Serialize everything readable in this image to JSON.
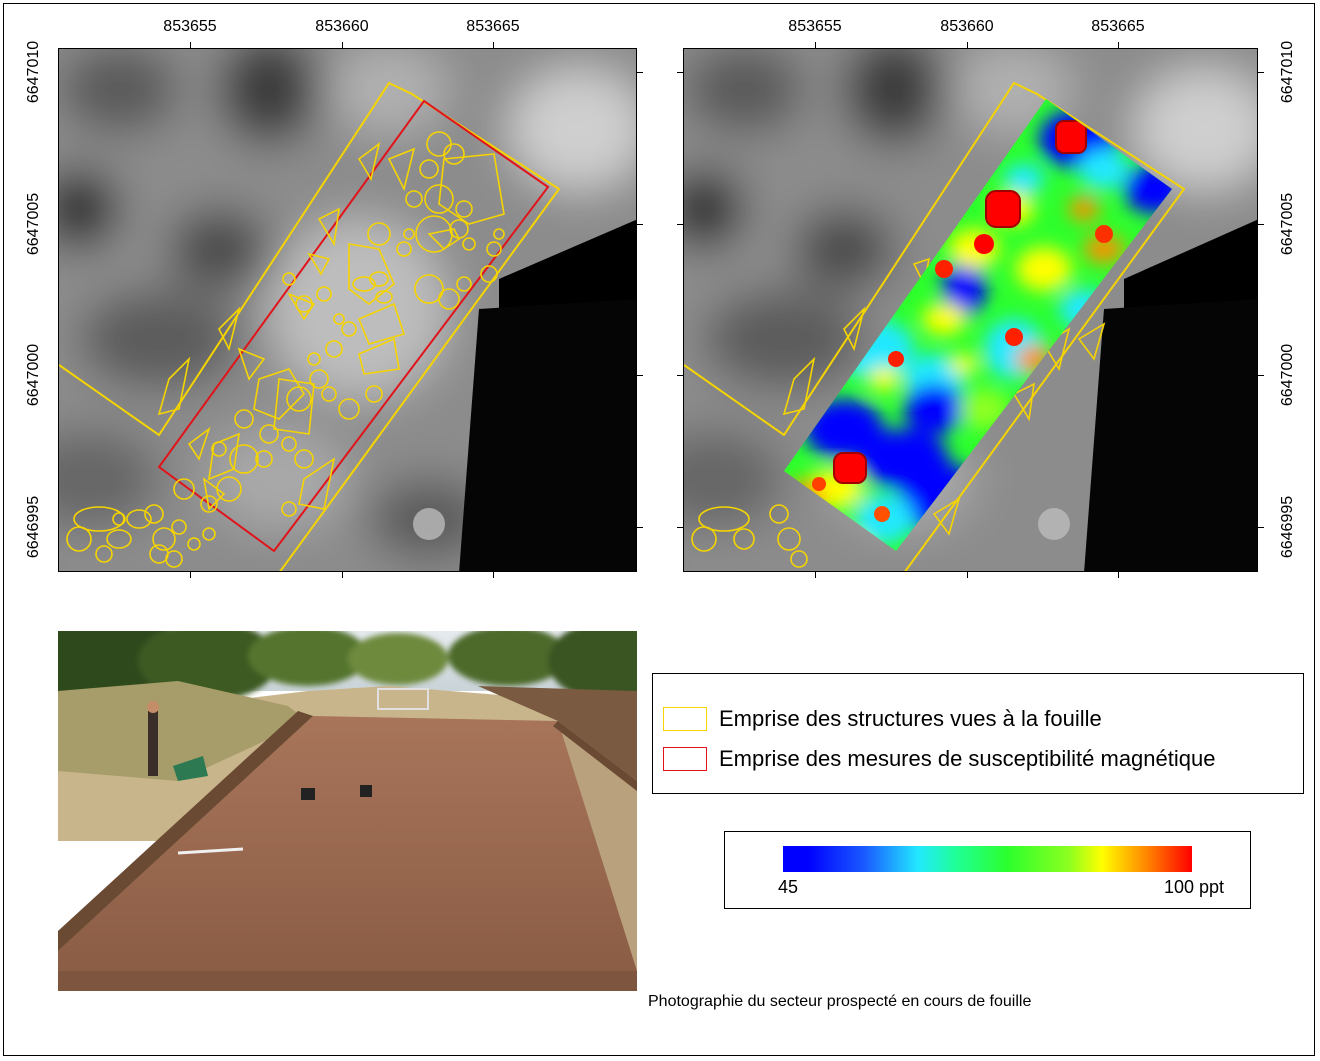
{
  "maps": {
    "x_ticks": [
      "853655",
      "853660",
      "853665"
    ],
    "y_ticks": [
      "6647010",
      "6647005",
      "6647000",
      "6646995"
    ]
  },
  "legend": {
    "items": [
      {
        "label": "Emprise des structures vues à la fouille",
        "color": "#f5d400"
      },
      {
        "label": "Emprise des mesures de susceptibilité magnétique",
        "color": "#e0141a"
      }
    ]
  },
  "scale": {
    "min_label": "45",
    "max_label": "100 ppt",
    "colors": [
      "#0000ff",
      "#22e8ff",
      "#2cff2c",
      "#ffff00",
      "#ff0000"
    ]
  },
  "photo": {
    "caption": "Photographie du secteur prospecté en cours de fouille"
  }
}
